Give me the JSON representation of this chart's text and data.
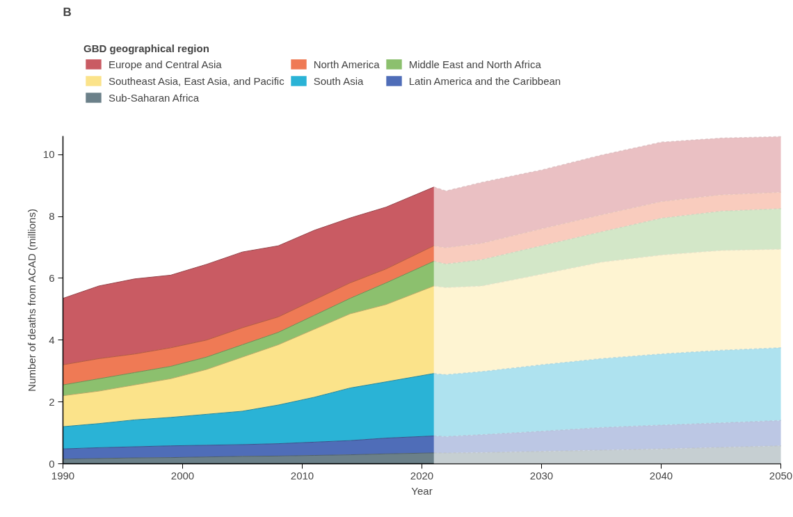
{
  "chart_data": {
    "type": "area",
    "title": "B",
    "xlabel": "Year",
    "ylabel": "Number of deaths from ACAD (millions)",
    "legend_title": "GBD geographical region",
    "stacked": true,
    "legend": "top left",
    "grid": false,
    "xlim": [
      1990,
      2050
    ],
    "xticks": [
      1990,
      2000,
      2010,
      2020,
      2030,
      2040,
      2050
    ],
    "ylim": [
      0,
      10.6
    ],
    "yticks": [
      0,
      2,
      4,
      6,
      8,
      10
    ],
    "bands": [
      {
        "axis": "x",
        "from": 2021,
        "to": 2050,
        "label": null,
        "color": "#ffffff"
      }
    ],
    "x": [
      1990,
      1993,
      1996,
      1999,
      2002,
      2005,
      2008,
      2011,
      2014,
      2017,
      2021,
      2022,
      2025,
      2030,
      2035,
      2040,
      2045,
      2050
    ],
    "series": [
      {
        "name": "Sub-Saharan Africa",
        "color": "#6b8089",
        "line_style": "dashed",
        "values": [
          0.15,
          0.17,
          0.19,
          0.2,
          0.22,
          0.24,
          0.25,
          0.27,
          0.29,
          0.32,
          0.35,
          0.35,
          0.36,
          0.4,
          0.44,
          0.48,
          0.53,
          0.58
        ]
      },
      {
        "name": "Latin America and the Caribbean",
        "color": "#4f6db8",
        "line_style": "dashed",
        "values": [
          0.33,
          0.35,
          0.36,
          0.38,
          0.38,
          0.38,
          0.4,
          0.43,
          0.46,
          0.51,
          0.55,
          0.53,
          0.58,
          0.65,
          0.73,
          0.77,
          0.79,
          0.82
        ]
      },
      {
        "name": "South Asia",
        "color": "#2ab3d6",
        "line_style": "dashed",
        "values": [
          0.72,
          0.78,
          0.87,
          0.92,
          1.0,
          1.08,
          1.25,
          1.45,
          1.7,
          1.82,
          2.02,
          2.0,
          2.04,
          2.15,
          2.23,
          2.3,
          2.35,
          2.35
        ]
      },
      {
        "name": "Southeast Asia, East Asia, and Pacific",
        "color": "#fbe38a",
        "line_style": "dashed",
        "values": [
          1.0,
          1.05,
          1.13,
          1.25,
          1.45,
          1.75,
          1.95,
          2.2,
          2.4,
          2.5,
          2.83,
          2.82,
          2.77,
          2.93,
          3.12,
          3.2,
          3.23,
          3.19
        ]
      },
      {
        "name": "Middle East and North Africa",
        "color": "#8cc06e",
        "line_style": "dashed",
        "values": [
          0.35,
          0.4,
          0.4,
          0.4,
          0.4,
          0.4,
          0.4,
          0.45,
          0.5,
          0.7,
          0.8,
          0.76,
          0.85,
          0.92,
          0.98,
          1.19,
          1.27,
          1.31
        ]
      },
      {
        "name": "North America",
        "color": "#ef7a55",
        "line_style": "dashed",
        "values": [
          0.65,
          0.65,
          0.6,
          0.6,
          0.55,
          0.55,
          0.5,
          0.5,
          0.5,
          0.45,
          0.5,
          0.53,
          0.53,
          0.55,
          0.55,
          0.54,
          0.53,
          0.53
        ]
      },
      {
        "name": "Europe and Central Asia",
        "color": "#c95b63",
        "line_style": "dashed",
        "values": [
          2.15,
          2.35,
          2.43,
          2.35,
          2.45,
          2.45,
          2.3,
          2.25,
          2.1,
          2.0,
          1.9,
          1.83,
          1.97,
          1.9,
          1.93,
          1.92,
          1.83,
          1.8
        ]
      }
    ]
  }
}
